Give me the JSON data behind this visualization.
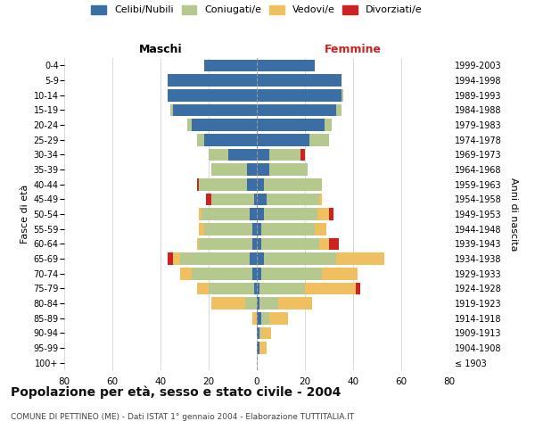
{
  "age_groups": [
    "100+",
    "95-99",
    "90-94",
    "85-89",
    "80-84",
    "75-79",
    "70-74",
    "65-69",
    "60-64",
    "55-59",
    "50-54",
    "45-49",
    "40-44",
    "35-39",
    "30-34",
    "25-29",
    "20-24",
    "15-19",
    "10-14",
    "5-9",
    "0-4"
  ],
  "birth_years": [
    "≤ 1903",
    "1904-1908",
    "1909-1913",
    "1914-1918",
    "1919-1923",
    "1924-1928",
    "1929-1933",
    "1934-1938",
    "1939-1943",
    "1944-1948",
    "1949-1953",
    "1954-1958",
    "1959-1963",
    "1964-1968",
    "1969-1973",
    "1974-1978",
    "1979-1983",
    "1984-1988",
    "1989-1993",
    "1994-1998",
    "1999-2003"
  ],
  "colors": {
    "celibi": "#3a6ea5",
    "coniugati": "#b5c98e",
    "vedovi": "#f0c060",
    "divorziati": "#cc2222"
  },
  "maschi": {
    "celibi": [
      0,
      0,
      0,
      0,
      0,
      1,
      2,
      3,
      2,
      2,
      3,
      1,
      4,
      4,
      12,
      22,
      27,
      35,
      37,
      37,
      22
    ],
    "coniugati": [
      0,
      0,
      0,
      0,
      5,
      19,
      25,
      29,
      22,
      20,
      20,
      18,
      20,
      15,
      8,
      3,
      2,
      1,
      0,
      0,
      0
    ],
    "vedovi": [
      0,
      0,
      0,
      2,
      14,
      5,
      5,
      3,
      1,
      2,
      1,
      0,
      0,
      0,
      0,
      0,
      0,
      0,
      0,
      0,
      0
    ],
    "divorziati": [
      0,
      0,
      0,
      0,
      0,
      0,
      0,
      2,
      0,
      0,
      0,
      2,
      1,
      0,
      0,
      0,
      0,
      0,
      0,
      0,
      0
    ]
  },
  "femmine": {
    "celibi": [
      0,
      1,
      1,
      2,
      1,
      1,
      2,
      3,
      2,
      2,
      3,
      4,
      3,
      5,
      5,
      22,
      28,
      33,
      35,
      35,
      24
    ],
    "coniugati": [
      0,
      0,
      1,
      3,
      8,
      19,
      25,
      30,
      24,
      22,
      22,
      22,
      24,
      16,
      13,
      8,
      3,
      2,
      1,
      0,
      0
    ],
    "vedovi": [
      0,
      3,
      4,
      8,
      14,
      21,
      15,
      20,
      4,
      5,
      5,
      1,
      0,
      0,
      0,
      0,
      0,
      0,
      0,
      0,
      0
    ],
    "divorziati": [
      0,
      0,
      0,
      0,
      0,
      2,
      0,
      0,
      4,
      0,
      2,
      0,
      0,
      0,
      2,
      0,
      0,
      0,
      0,
      0,
      0
    ]
  },
  "xlim": 80,
  "title_main": "Popolazione per età, sesso e stato civile - 2004",
  "title_sub": "COMUNE DI PETTINEO (ME) - Dati ISTAT 1° gennaio 2004 - Elaborazione TUTTITALIA.IT",
  "ylabel_left": "Fasce di età",
  "ylabel_right": "Anni di nascita",
  "legend_labels": [
    "Celibi/Nubili",
    "Coniugati/e",
    "Vedovi/e",
    "Divorziati/e"
  ],
  "maschi_label": "Maschi",
  "femmine_label": "Femmine",
  "background_color": "#ffffff",
  "grid_color": "#cccccc"
}
